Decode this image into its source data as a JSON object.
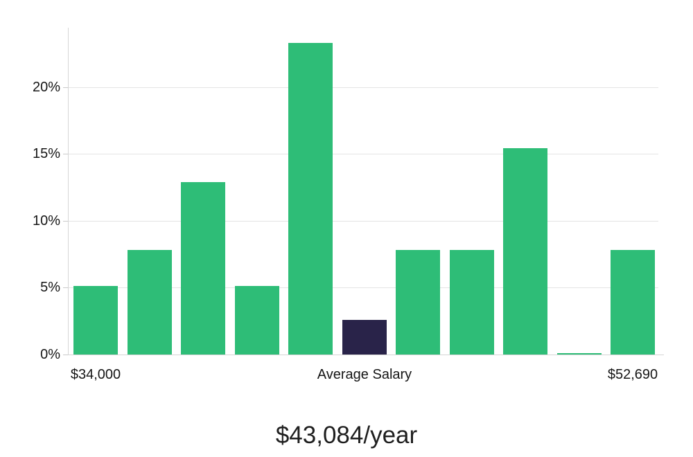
{
  "chart_data": {
    "type": "bar",
    "title": "$43,084/year",
    "xlabel": "",
    "ylabel": "",
    "ylim": [
      0,
      24.4
    ],
    "grid": true,
    "legend": "none",
    "y_ticks": [
      {
        "value": 0,
        "label": "0%"
      },
      {
        "value": 5,
        "label": "5%"
      },
      {
        "value": 10,
        "label": "10%"
      },
      {
        "value": 15,
        "label": "15%"
      },
      {
        "value": 20,
        "label": "20%"
      }
    ],
    "categories": [
      "bin-1",
      "bin-2",
      "bin-3",
      "bin-4",
      "bin-5",
      "bin-6-average-salary",
      "bin-7",
      "bin-8",
      "bin-9",
      "bin-10",
      "bin-11"
    ],
    "values": [
      5.1,
      7.8,
      12.9,
      5.1,
      23.3,
      2.6,
      7.8,
      7.8,
      15.4,
      0.1,
      7.8
    ],
    "highlight_index": 5,
    "x_axis_labels": [
      {
        "bar_index": 0,
        "label": "$34,000"
      },
      {
        "bar_index": 5,
        "label": "Average Salary"
      },
      {
        "bar_index": 10,
        "label": "$52,690"
      }
    ],
    "colors": {
      "bar_default": "#2ebd77",
      "bar_highlight": "#292349",
      "gridline": "#e4e4e4",
      "axis_line": "#d6d6d6",
      "text": "#151515"
    }
  }
}
